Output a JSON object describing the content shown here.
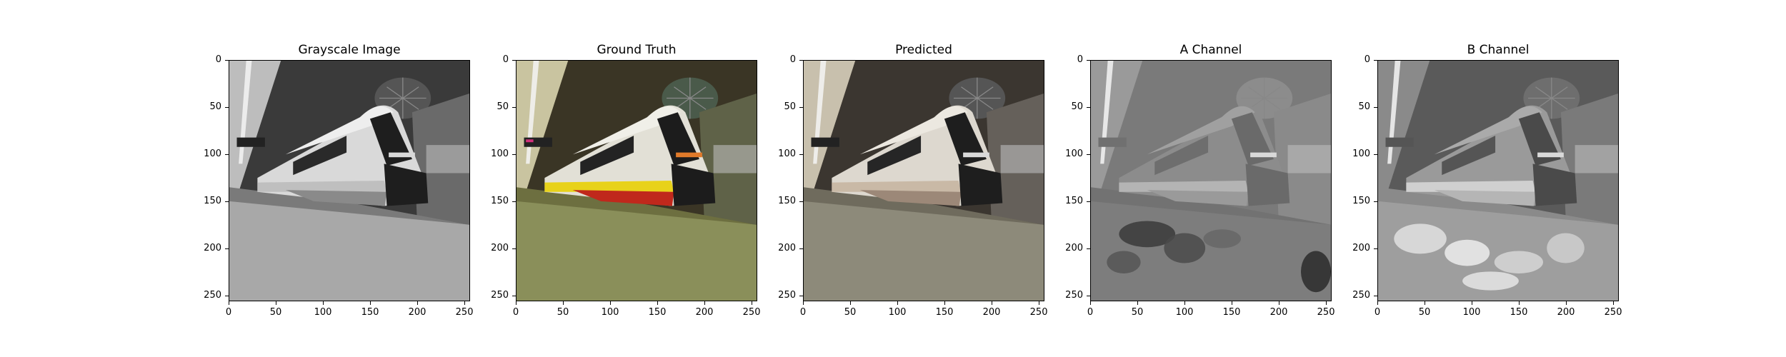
{
  "panels": [
    {
      "title": "Grayscale Image",
      "mode": "gray"
    },
    {
      "title": "Ground Truth",
      "mode": "truth"
    },
    {
      "title": "Predicted",
      "mode": "pred"
    },
    {
      "title": "A Channel",
      "mode": "a"
    },
    {
      "title": "B Channel",
      "mode": "b"
    }
  ],
  "axes": {
    "x_ticks": [
      "0",
      "50",
      "100",
      "150",
      "200",
      "250"
    ],
    "y_ticks": [
      "0",
      "50",
      "100",
      "150",
      "200",
      "250"
    ],
    "range": [
      0,
      256
    ]
  },
  "colors": {
    "truth_stripe_yellow": "#e8d21a",
    "truth_stripe_red": "#c0281c",
    "truth_floor": "#8a8f5a",
    "pred_floor": "#8d8a7a"
  }
}
